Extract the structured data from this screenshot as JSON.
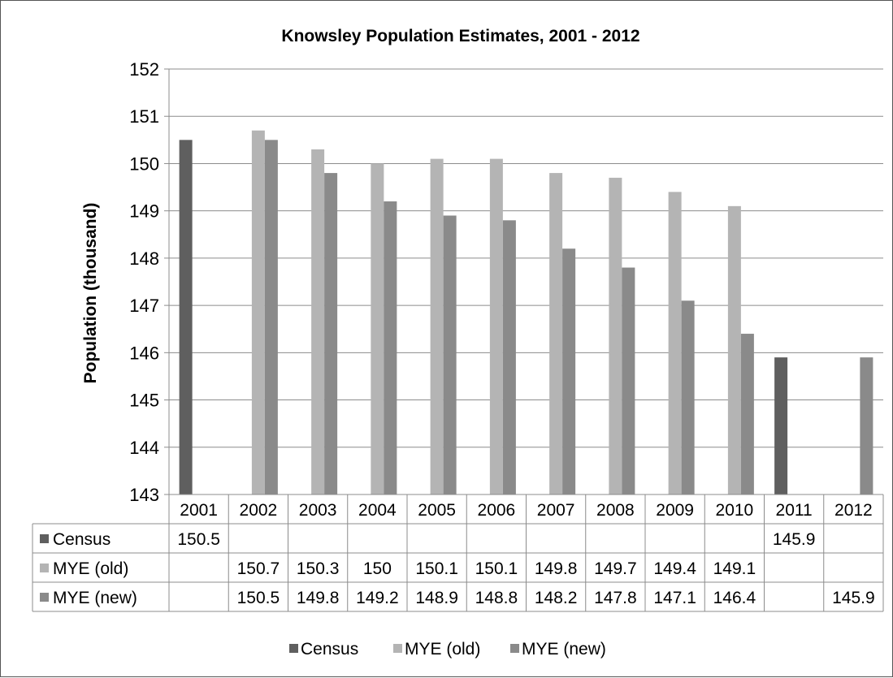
{
  "chart_data": {
    "type": "bar",
    "title": "Knowsley Population Estimates, 2001 - 2012",
    "ylabel": "Population (thousand)",
    "xlabel": "",
    "ylim": [
      143,
      152
    ],
    "yticks": [
      143,
      144,
      145,
      146,
      147,
      148,
      149,
      150,
      151,
      152
    ],
    "categories": [
      "2001",
      "2002",
      "2003",
      "2004",
      "2005",
      "2006",
      "2007",
      "2008",
      "2009",
      "2010",
      "2011",
      "2012"
    ],
    "series": [
      {
        "name": "Census",
        "color": "#5f5f5f",
        "values": [
          150.5,
          null,
          null,
          null,
          null,
          null,
          null,
          null,
          null,
          null,
          145.9,
          null
        ],
        "labels": [
          "150.5",
          "",
          "",
          "",
          "",
          "",
          "",
          "",
          "",
          "",
          "145.9",
          ""
        ]
      },
      {
        "name": "MYE (old)",
        "color": "#b4b4b4",
        "values": [
          null,
          150.7,
          150.3,
          150,
          150.1,
          150.1,
          149.8,
          149.7,
          149.4,
          149.1,
          null,
          null
        ],
        "labels": [
          "",
          "150.7",
          "150.3",
          "150",
          "150.1",
          "150.1",
          "149.8",
          "149.7",
          "149.4",
          "149.1",
          "",
          ""
        ]
      },
      {
        "name": "MYE (new)",
        "color": "#8a8a8a",
        "values": [
          null,
          150.5,
          149.8,
          149.2,
          148.9,
          148.8,
          148.2,
          147.8,
          147.1,
          146.4,
          null,
          145.9
        ],
        "labels": [
          "",
          "150.5",
          "149.8",
          "149.2",
          "148.9",
          "148.8",
          "148.2",
          "147.8",
          "147.1",
          "146.4",
          "",
          "145.9"
        ]
      }
    ],
    "grid": true,
    "legend_position": "bottom",
    "data_table": true
  }
}
